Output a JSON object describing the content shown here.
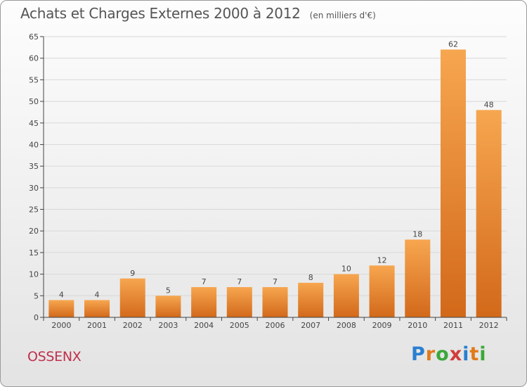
{
  "header": {
    "title": "Achats et Charges Externes 2000 à 2012",
    "unit": "(en milliers d'€)"
  },
  "footer": {
    "commune": "OSSENX",
    "brand": "Proxiti"
  },
  "colors": {
    "bar_light": "#f7a650",
    "bar_dark": "#d2691a",
    "axis": "#444444",
    "grid": "#d8d8d8",
    "commune": "#c0304a"
  },
  "chart_data": {
    "type": "bar",
    "title": "Achats et Charges Externes 2000 à 2012",
    "subtitle": "(en milliers d'€)",
    "xlabel": "",
    "ylabel": "",
    "categories": [
      "2000",
      "2001",
      "2002",
      "2003",
      "2004",
      "2005",
      "2006",
      "2007",
      "2008",
      "2009",
      "2010",
      "2011",
      "2012"
    ],
    "values": [
      4,
      4,
      9,
      5,
      7,
      7,
      7,
      8,
      10,
      12,
      18,
      62,
      48
    ],
    "ylim": [
      0,
      65
    ],
    "yticks": [
      0,
      5,
      10,
      15,
      20,
      25,
      30,
      35,
      40,
      45,
      50,
      55,
      60,
      65
    ],
    "grid": true,
    "data_labels": true
  }
}
